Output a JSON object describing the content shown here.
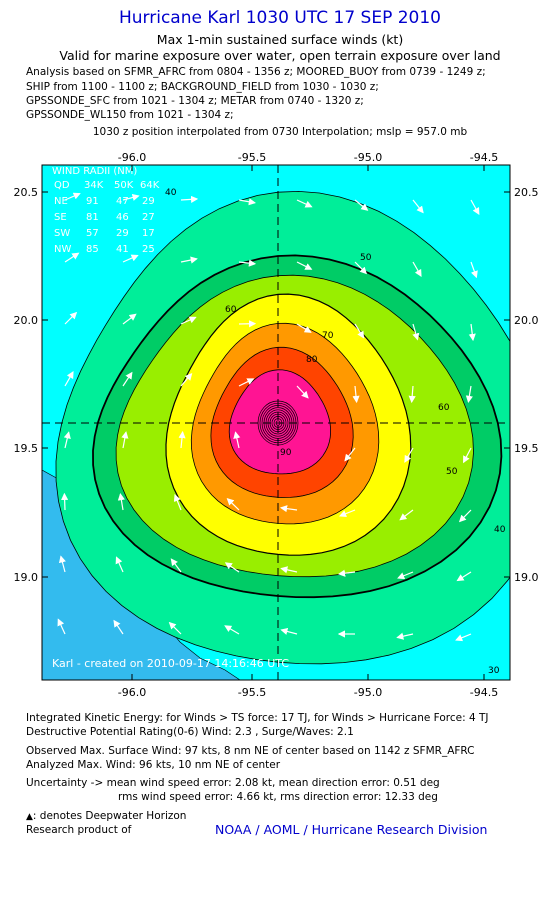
{
  "header": {
    "title": "Hurricane Karl 1030 UTC 17 SEP 2010",
    "subtitle1": "Max 1-min sustained surface winds (kt)",
    "subtitle2": "Valid for marine exposure over water, open terrain exposure over land"
  },
  "analysis": [
    "Analysis based on SFMR_AFRC from 0804 - 1356 z; MOORED_BUOY from 0739 - 1249 z;",
    "SHIP from 1100 - 1100 z; BACKGROUND_FIELD from 1030 - 1030 z;",
    "GPSSONDE_SFC from 1021 - 1304 z; METAR from 0740 - 1320 z;",
    "GPSSONDE_WL150 from 1021 - 1304 z;"
  ],
  "position_note": "1030 z position interpolated from 0730 Interpolation; mslp = 957.0 mb",
  "map": {
    "lon_ticks": [
      "-96.0",
      "-95.5",
      "-95.0",
      "-94.5"
    ],
    "lat_ticks": [
      "20.5",
      "20.0",
      "19.5",
      "19.0"
    ],
    "lon_range": [
      -96.35,
      -94.45
    ],
    "lat_range": [
      18.6,
      20.6
    ],
    "center": {
      "lon": -95.38,
      "lat": 19.6
    },
    "contour_labels": [
      "40",
      "50",
      "60",
      "70",
      "80",
      "90",
      "60",
      "50",
      "40",
      "30"
    ],
    "colors": {
      "ocean": "#00ffff",
      "band40": "#00ee99",
      "band50": "#00cc66",
      "band60": "#99ee00",
      "band65": "#ffff00",
      "band70": "#ff9900",
      "band80": "#ff4400",
      "band90": "#ff1493",
      "land": "#33bbee"
    },
    "credit": "Karl - created on 2010-09-17 14:16:46 UTC",
    "wind_radii": {
      "title": "WIND RADII (NM)",
      "headers": [
        "QD",
        "34K",
        "50K",
        "64K"
      ],
      "rows": [
        [
          "NE",
          "91",
          "47",
          "29"
        ],
        [
          "SE",
          "81",
          "46",
          "27"
        ],
        [
          "SW",
          "57",
          "29",
          "17"
        ],
        [
          "NW",
          "85",
          "41",
          "25"
        ]
      ]
    }
  },
  "footer": {
    "ike": "Integrated Kinetic Energy: for Winds > TS force: 17 TJ, for Winds > Hurricane Force: 4 TJ",
    "dpr": "Destructive Potential Rating(0-6) Wind: 2.3 , Surge/Waves: 2.1",
    "obs": "Observed Max. Surface Wind: 97 kts, 8 nm NE of center based on 1142 z SFMR_AFRC",
    "analyzed": "Analyzed Max. Wind: 96 kts, 10 nm NE of center",
    "uncertainty1": "Uncertainty -> mean wind speed error: 2.08 kt, mean direction error: 0.51 deg",
    "uncertainty2": "rms wind speed error: 4.66 kt, rms direction error: 12.33 deg",
    "deepwater": ": denotes Deepwater Horizon",
    "research": "Research product of",
    "org": "NOAA / AOML / Hurricane Research Division"
  }
}
